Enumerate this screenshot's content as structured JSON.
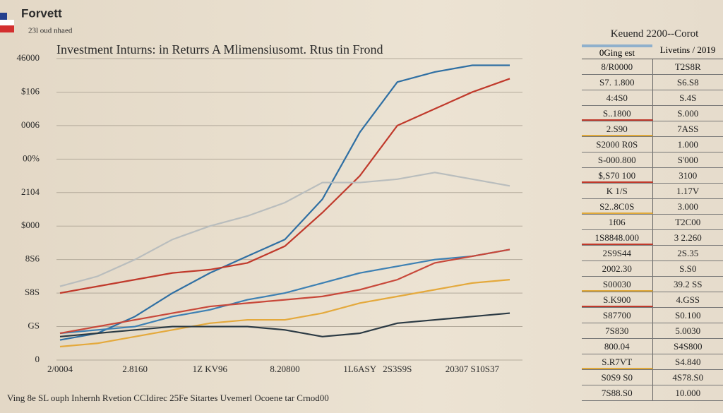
{
  "header": {
    "brand": "Forvett",
    "tagline": "23l oud nhaed"
  },
  "chart_data": {
    "type": "line",
    "title": "Investment Inturns: in Returrs A Mlimensiusomt. Rtus tin Frond",
    "categories": [
      "2/0004",
      null,
      "2.8160",
      null,
      "1Z KV96",
      null,
      "8.20800",
      null,
      "1L6ASY",
      "2S3S9S",
      null,
      "20307 S10S37",
      null
    ],
    "series": [
      {
        "color": "#2f6fa3",
        "values": [
          0.6,
          0.8,
          1.3,
          2.0,
          2.6,
          3.1,
          3.6,
          4.8,
          6.8,
          8.3,
          8.6,
          8.8,
          8.8
        ]
      },
      {
        "color": "#c0392b",
        "values": [
          2.0,
          2.2,
          2.4,
          2.6,
          2.7,
          2.9,
          3.4,
          4.4,
          5.5,
          7.0,
          7.5,
          8.0,
          8.4
        ]
      },
      {
        "color": "#b9bdbd",
        "values": [
          2.2,
          2.5,
          3.0,
          3.6,
          4.0,
          4.3,
          4.7,
          5.3,
          5.3,
          5.4,
          5.6,
          5.4,
          5.2
        ]
      },
      {
        "color": "#3d80b3",
        "values": [
          0.8,
          0.9,
          1.0,
          1.3,
          1.5,
          1.8,
          2.0,
          2.3,
          2.6,
          2.8,
          3.0,
          3.1,
          3.3
        ]
      },
      {
        "color": "#c8483a",
        "values": [
          0.8,
          1.0,
          1.2,
          1.4,
          1.6,
          1.7,
          1.8,
          1.9,
          2.1,
          2.4,
          2.9,
          3.1,
          3.3
        ]
      },
      {
        "color": "#e4a93c",
        "values": [
          0.4,
          0.5,
          0.7,
          0.9,
          1.1,
          1.2,
          1.2,
          1.4,
          1.7,
          1.9,
          2.1,
          2.3,
          2.4
        ]
      },
      {
        "color": "#2b3a44",
        "values": [
          0.7,
          0.8,
          0.9,
          1.0,
          1.0,
          1.0,
          0.9,
          0.7,
          0.8,
          1.1,
          1.2,
          1.3,
          1.4
        ]
      }
    ],
    "ylim": [
      0,
      9
    ],
    "yticks": [
      0,
      {
        "value": 1,
        "label": "GS"
      },
      {
        "value": 2,
        "label": "S8S"
      },
      {
        "value": 3,
        "label": "8S6"
      },
      {
        "value": 4,
        "label": "$000"
      },
      {
        "value": 5,
        "label": "2104"
      },
      {
        "value": 6,
        "label": "00%"
      },
      {
        "value": 7,
        "label": "0006"
      },
      {
        "value": 8,
        "label": "$106"
      },
      {
        "value": 9,
        "label": "46000"
      }
    ],
    "grid": true,
    "footnote": "Ving 8e SL ouph Inhernh Rvetion CCIdirec 25Fe Sitartes Uvemerl Ocoene tar Crnod00"
  },
  "table": {
    "title": "Keuend 2200--Corot",
    "headers": [
      "0Ging est",
      "Livetins / 2019"
    ],
    "rows": [
      [
        "8/R0000",
        "T2S8R"
      ],
      [
        "S7. 1.800",
        "S6.S8"
      ],
      [
        "4:4S0",
        "S.4S"
      ],
      [
        "S..1800",
        "S.000"
      ],
      [
        "2.S90",
        "7ASS"
      ],
      [
        "S2000 R0S",
        "1.000"
      ],
      [
        "S-000.800",
        "S'000"
      ],
      [
        "$,S70 100",
        "3100"
      ],
      [
        "K  1/S",
        "1.17V"
      ],
      [
        "S2..8C0S",
        "3.000"
      ],
      [
        "1f06",
        "T2C00"
      ],
      [
        "1S8848.000",
        "3 2.260"
      ],
      [
        "2S9S44",
        "2S.35"
      ],
      [
        "2002.30",
        "S.S0"
      ],
      [
        "S00030",
        "39.2 SS"
      ],
      [
        "S.K900",
        "4.GSS"
      ],
      [
        "S87700",
        "S0.100"
      ],
      [
        "7S830",
        "5.0030"
      ],
      [
        "800.04",
        "S4S800"
      ],
      [
        "S.R7VT",
        "S4.840"
      ],
      [
        "S0S9 S0",
        "4S78.S0"
      ],
      [
        "7S88.S0",
        "10.000"
      ]
    ]
  }
}
